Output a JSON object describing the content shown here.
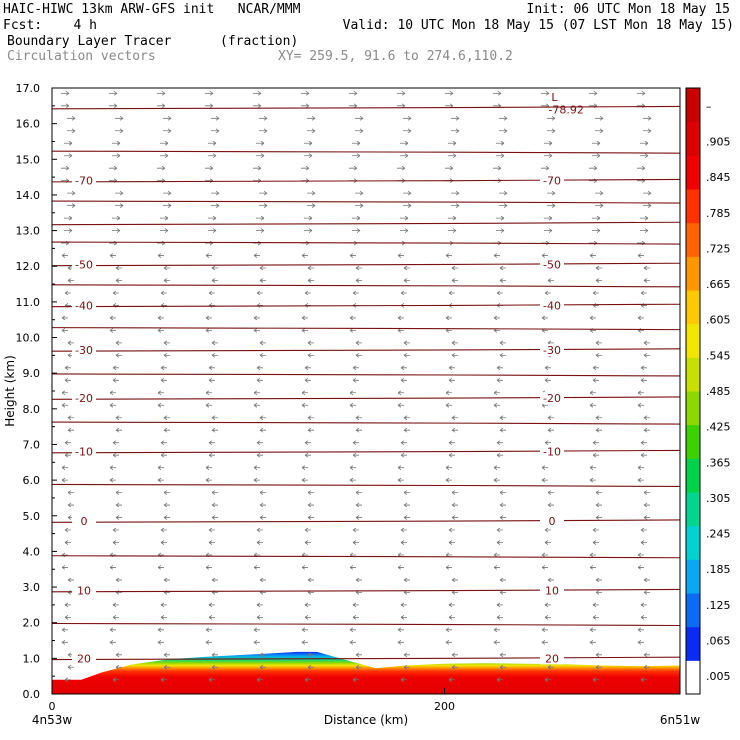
{
  "header": {
    "title": "HAIC-HIWC 13km ARW-GFS init   NCAR/MMM",
    "init": "Init: 06 UTC Mon 18 May 15",
    "fcst_label": "Fcst:",
    "fcst_value": "4 h",
    "valid": "Valid: 10 UTC Mon 18 May 15 (07 LST Mon 18 May 15)",
    "field": "Boundary Layer Tracer",
    "field_units": "(fraction)",
    "vectors": "Circulation vectors",
    "xy": "XY= 259.5, 91.6 to 274.6,110.2"
  },
  "chart_data": {
    "type": "heatmap",
    "title": "Boundary Layer Tracer",
    "xlabel": "Distance (km)",
    "ylabel": "Height (km)",
    "xlim": [
      0,
      320
    ],
    "ylim": [
      0,
      17
    ],
    "x_ticks": [
      {
        "value": 0,
        "label": "0"
      },
      {
        "value": 200,
        "label": "200"
      }
    ],
    "x_end_labels": {
      "left": "4n53w",
      "right": "6n51w"
    },
    "y_ticks": [
      "0.0",
      "1.0",
      "2.0",
      "3.0",
      "4.0",
      "5.0",
      "6.0",
      "7.0",
      "8.0",
      "9.0",
      "10.0",
      "11.0",
      "12.0",
      "13.0",
      "14.0",
      "15.0",
      "16.0",
      "17.0"
    ],
    "colorbar": {
      "labels": [
        ".005",
        ".065",
        ".125",
        ".185",
        ".245",
        ".305",
        ".365",
        ".425",
        ".485",
        ".545",
        ".605",
        ".665",
        ".725",
        ".785",
        ".845",
        ".905",
        "–"
      ],
      "colors": [
        "#ffffff",
        "#0a2cf2",
        "#0a6cf2",
        "#0aa8f2",
        "#00d2d2",
        "#00d690",
        "#00d24a",
        "#3cd200",
        "#8cd700",
        "#c8e000",
        "#f0e600",
        "#ffc800",
        "#ff9600",
        "#ff6400",
        "#ff3200",
        "#f00000",
        "#dc0000",
        "#c80000"
      ]
    },
    "tracer_top_km": [
      [
        0,
        0.4
      ],
      [
        15,
        0.4
      ],
      [
        25,
        0.6
      ],
      [
        40,
        0.82
      ],
      [
        60,
        0.98
      ],
      [
        80,
        1.05
      ],
      [
        105,
        1.12
      ],
      [
        125,
        1.18
      ],
      [
        135,
        1.18
      ],
      [
        150,
        0.95
      ],
      [
        165,
        0.72
      ],
      [
        180,
        0.8
      ],
      [
        200,
        0.85
      ],
      [
        220,
        0.86
      ],
      [
        240,
        0.85
      ],
      [
        260,
        0.84
      ],
      [
        280,
        0.8
      ],
      [
        300,
        0.78
      ],
      [
        320,
        0.8
      ]
    ],
    "isotherms": [
      {
        "height_km": 16.45,
        "label": null
      },
      {
        "height_km": 15.2,
        "label": null
      },
      {
        "height_km": 14.4,
        "label": "-70"
      },
      {
        "height_km": 13.8,
        "label": null
      },
      {
        "height_km": 13.2,
        "label": null
      },
      {
        "height_km": 12.65,
        "label": null
      },
      {
        "height_km": 12.05,
        "label": "-50"
      },
      {
        "height_km": 11.45,
        "label": null
      },
      {
        "height_km": 10.9,
        "label": "-40"
      },
      {
        "height_km": 10.25,
        "label": null
      },
      {
        "height_km": 9.65,
        "label": "-30"
      },
      {
        "height_km": 8.95,
        "label": null
      },
      {
        "height_km": 8.3,
        "label": "-20"
      },
      {
        "height_km": 7.6,
        "label": null
      },
      {
        "height_km": 6.8,
        "label": "-10"
      },
      {
        "height_km": 5.85,
        "label": null
      },
      {
        "height_km": 4.85,
        "label": "0"
      },
      {
        "height_km": 3.85,
        "label": null
      },
      {
        "height_km": 2.9,
        "label": "10"
      },
      {
        "height_km": 1.95,
        "label": null
      },
      {
        "height_km": 1.0,
        "label": "20"
      }
    ],
    "annotations": [
      {
        "text": "L",
        "x": 256,
        "y": 16.75
      },
      {
        "text": "-78.92",
        "x": 262,
        "y": 16.4
      }
    ]
  }
}
